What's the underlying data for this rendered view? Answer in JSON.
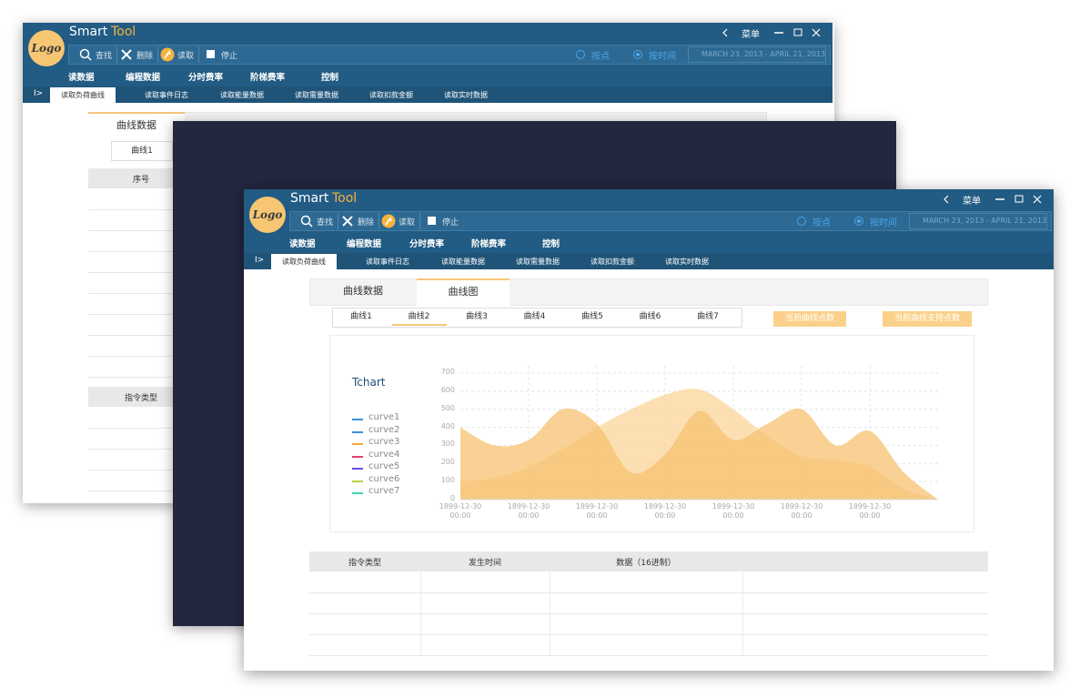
{
  "app": {
    "logo": "Logo",
    "title_a": "Smart",
    "title_b": "Tool",
    "menu_button": "菜单",
    "toolbar": [
      "查找",
      "删除",
      "读取",
      "停止"
    ],
    "radios": [
      "按点",
      "按时间"
    ],
    "date_range": "MARCH 23, 2013 - APRIL 21, 2013",
    "menu": [
      "读数据",
      "编程数据",
      "分时费率",
      "阶梯费率",
      "控制"
    ],
    "collapse": "I>",
    "tabs": [
      "读取负荷曲线",
      "读取事件日志",
      "读取能量数据",
      "读取需量数据",
      "读取扣款金额",
      "读取实时数据"
    ]
  },
  "content": {
    "tabs": [
      "曲线数据",
      "曲线图"
    ],
    "curve_tabs": [
      "曲线1",
      "曲线2",
      "曲线3",
      "曲线4",
      "曲线5",
      "曲线6",
      "曲线7"
    ],
    "buttons": [
      "当前曲线点数",
      "当前曲线支持点数"
    ],
    "left_table_header": "序号",
    "table_headers": [
      "指令类型",
      "发生时间",
      "数据（16进制）"
    ]
  },
  "chart_data": {
    "type": "area",
    "title": "Tchart",
    "legend": [
      {
        "name": "curve1",
        "color": "#3d8fe0"
      },
      {
        "name": "curve2",
        "color": "#3d8fe0"
      },
      {
        "name": "curve3",
        "color": "#f4a93a"
      },
      {
        "name": "curve4",
        "color": "#e0406a"
      },
      {
        "name": "curve5",
        "color": "#6a4de6"
      },
      {
        "name": "curve6",
        "color": "#b6d43c"
      },
      {
        "name": "curve7",
        "color": "#3fd6b0"
      }
    ],
    "categories": [
      "1899-12-30\n00:00",
      null,
      "1899-12-30\n00:00",
      null,
      "1899-12-30\n00:00",
      null,
      "1899-12-30\n00:00",
      null,
      "1899-12-30\n00:00",
      null,
      "1899-12-30\n00:00",
      null,
      "1899-12-30\n00:00",
      null,
      null
    ],
    "series": [
      {
        "color": "#fbd59a",
        "values": [
          100,
          120,
          180,
          280,
          400,
          500,
          580,
          610,
          500,
          350,
          240,
          220,
          180,
          60,
          0
        ]
      },
      {
        "color": "#f7c170",
        "values": [
          400,
          300,
          330,
          500,
          420,
          150,
          250,
          490,
          330,
          420,
          500,
          300,
          380,
          150,
          0
        ]
      }
    ],
    "ylim": [
      0,
      700
    ],
    "yticks": [
      0,
      100,
      200,
      300,
      400,
      500,
      600,
      700
    ],
    "grid": true
  }
}
